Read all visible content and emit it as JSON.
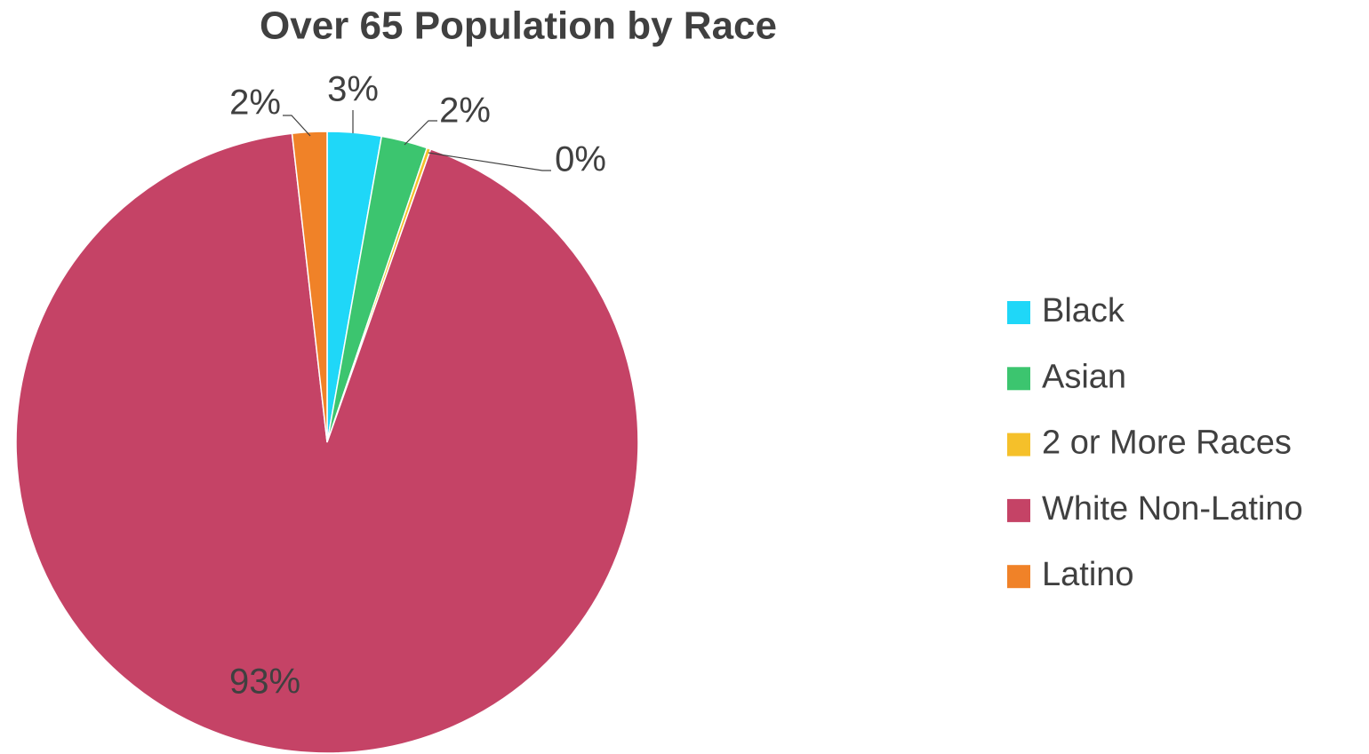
{
  "chart_data": {
    "type": "pie",
    "title": "Over 65 Population by Race",
    "categories": [
      "Black",
      "Asian",
      "2 or More Races",
      "White Non-Latino",
      "Latino"
    ],
    "values": [
      2.8,
      2.4,
      0.2,
      92.8,
      1.8
    ],
    "value_labels": [
      "3%",
      "2%",
      "0%",
      "93%",
      "2%"
    ],
    "colors": [
      "#1fd7f8",
      "#3cc56f",
      "#f5c02a",
      "#c54366",
      "#f08228"
    ],
    "legend": "right"
  }
}
